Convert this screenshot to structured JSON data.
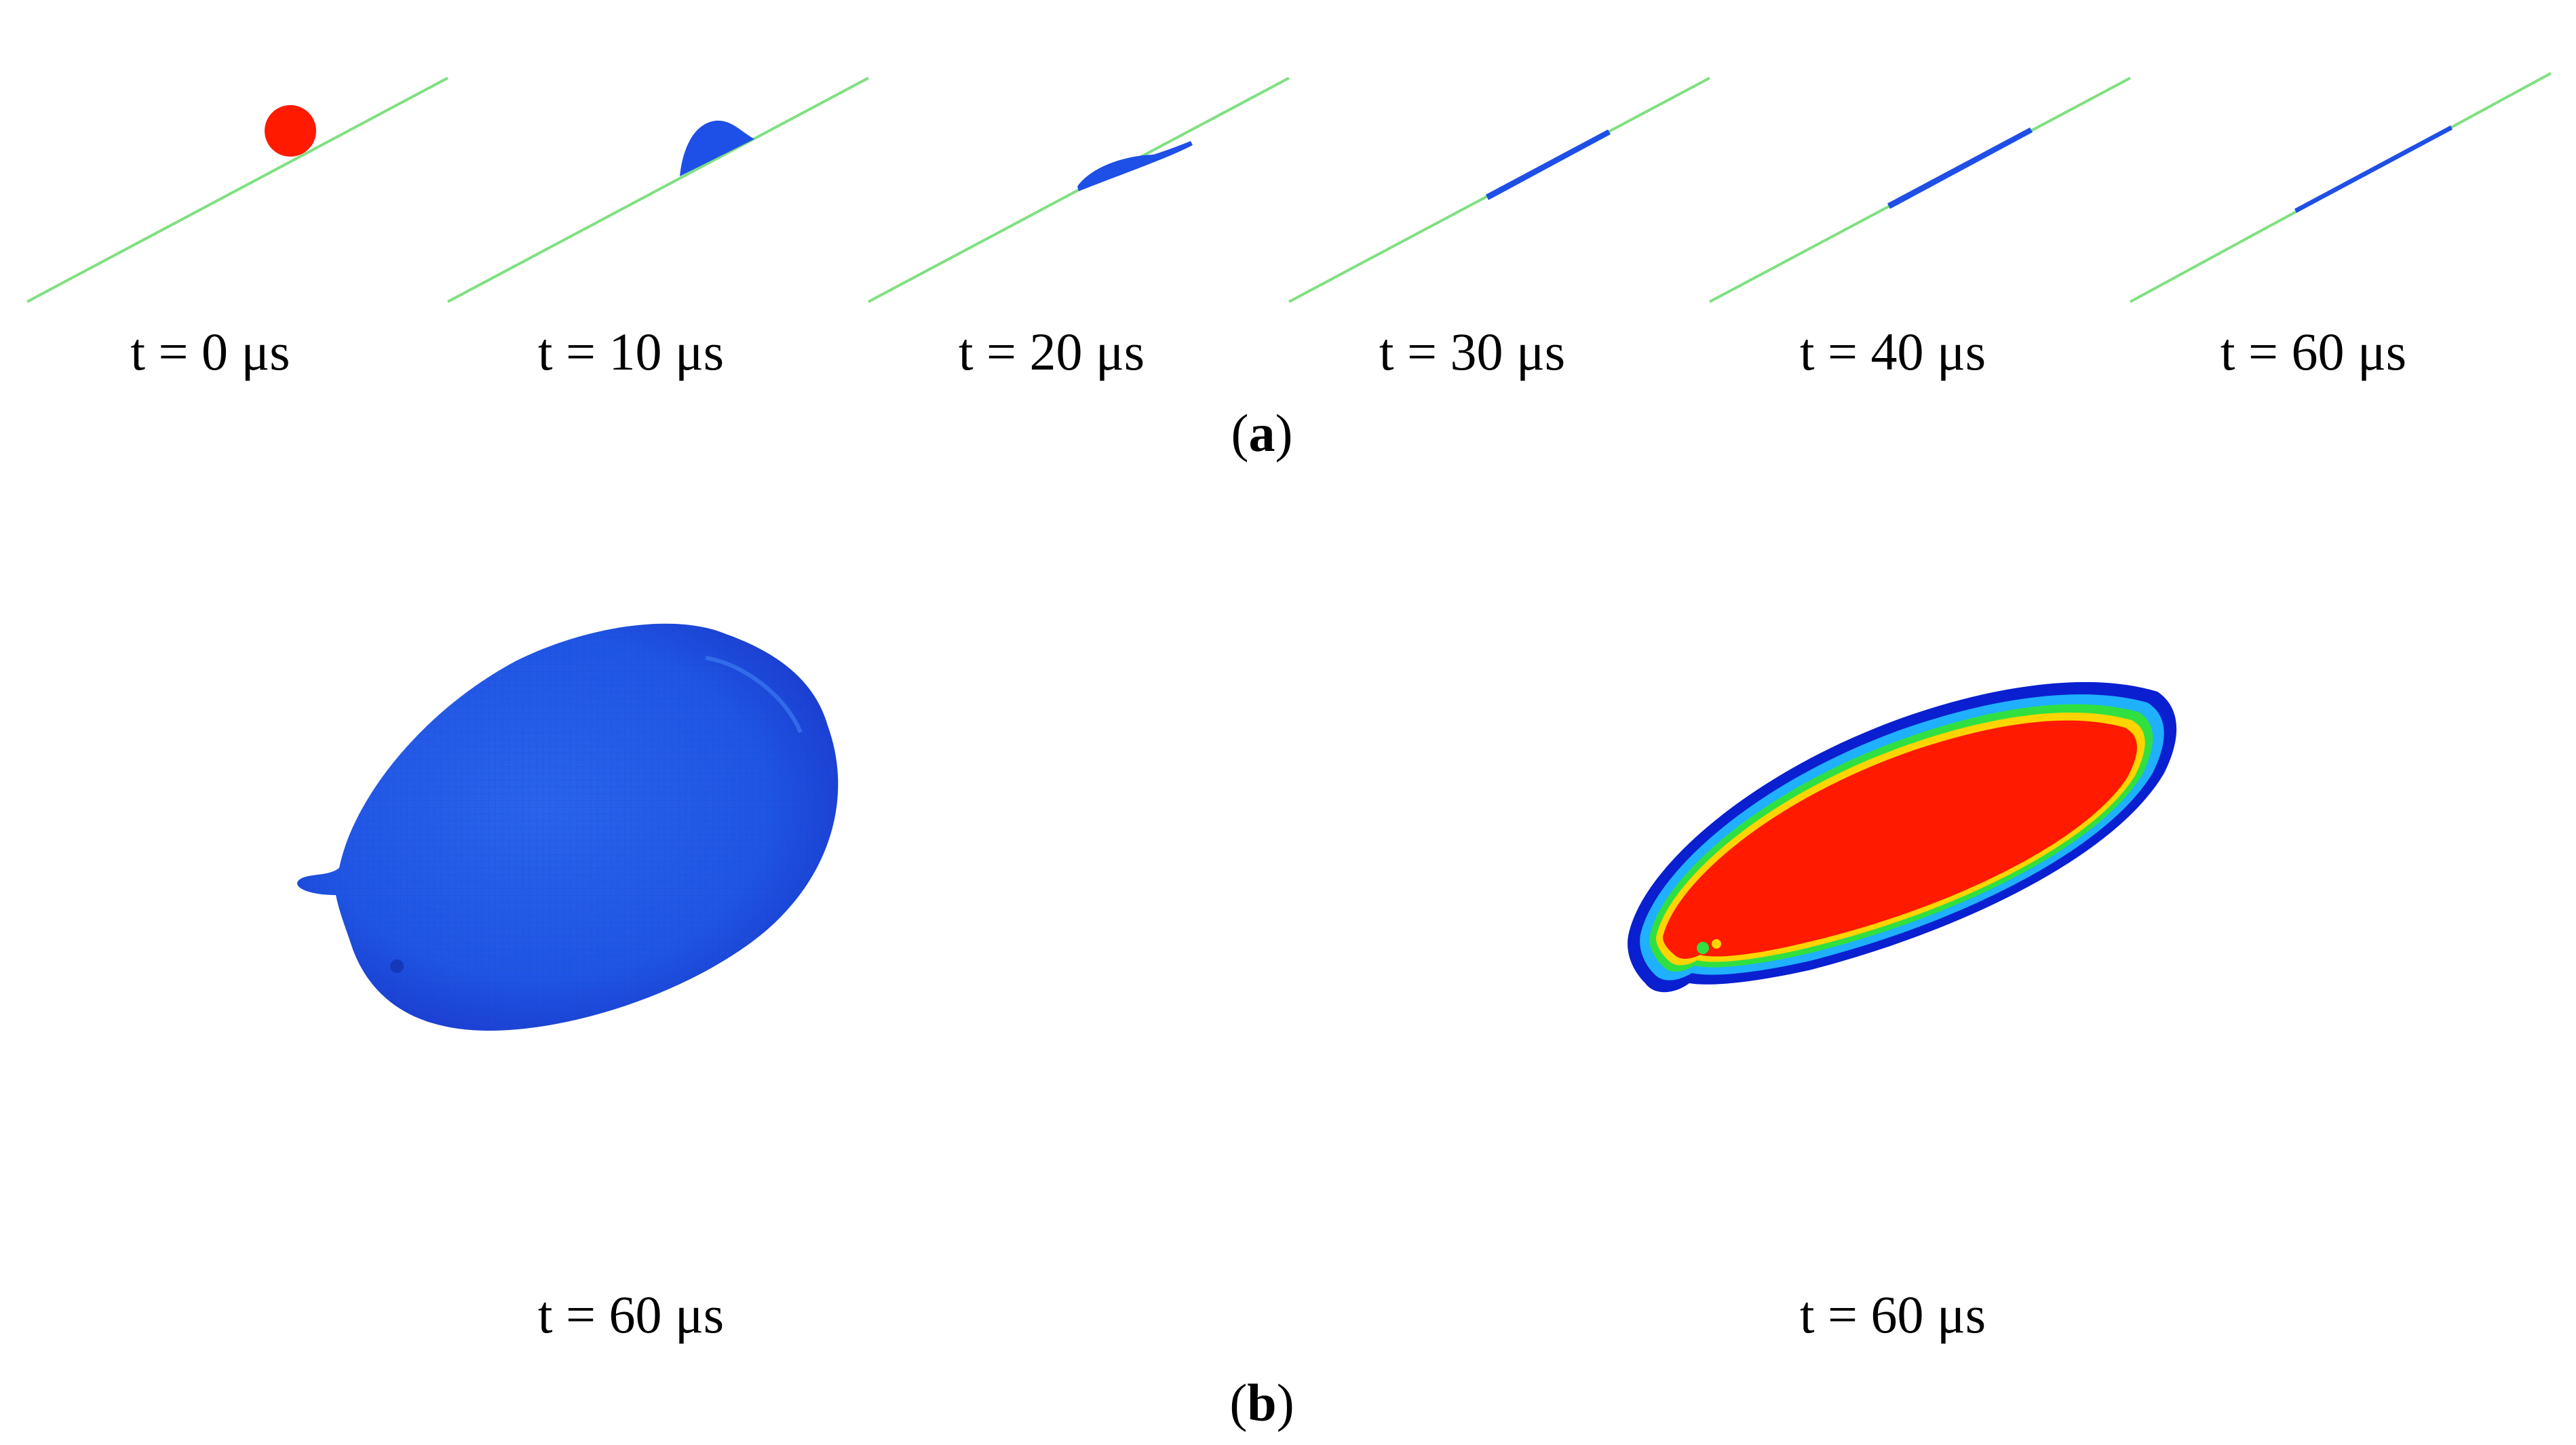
{
  "panel_a": {
    "label": "a",
    "frames": [
      {
        "time": "t = 0 μs",
        "state": "droplet"
      },
      {
        "time": "t = 10 μs",
        "state": "impact"
      },
      {
        "time": "t = 20 μs",
        "state": "spreading"
      },
      {
        "time": "t = 30 μs",
        "state": "thin-film"
      },
      {
        "time": "t = 40 μs",
        "state": "thin-film"
      },
      {
        "time": "t = 60 μs",
        "state": "thin-film"
      }
    ]
  },
  "panel_b": {
    "label": "b",
    "views": [
      {
        "time": "t = 60 μs",
        "colormap": "blue splat"
      },
      {
        "time": "t = 60 μs",
        "colormap": "red core with rainbow rim"
      }
    ]
  },
  "colors": {
    "substrate_line": "#7fe07f",
    "droplet_red": "#ff1a00",
    "particle_blue": "#1e4fe6",
    "deep_blue": "#1a3ccf"
  }
}
